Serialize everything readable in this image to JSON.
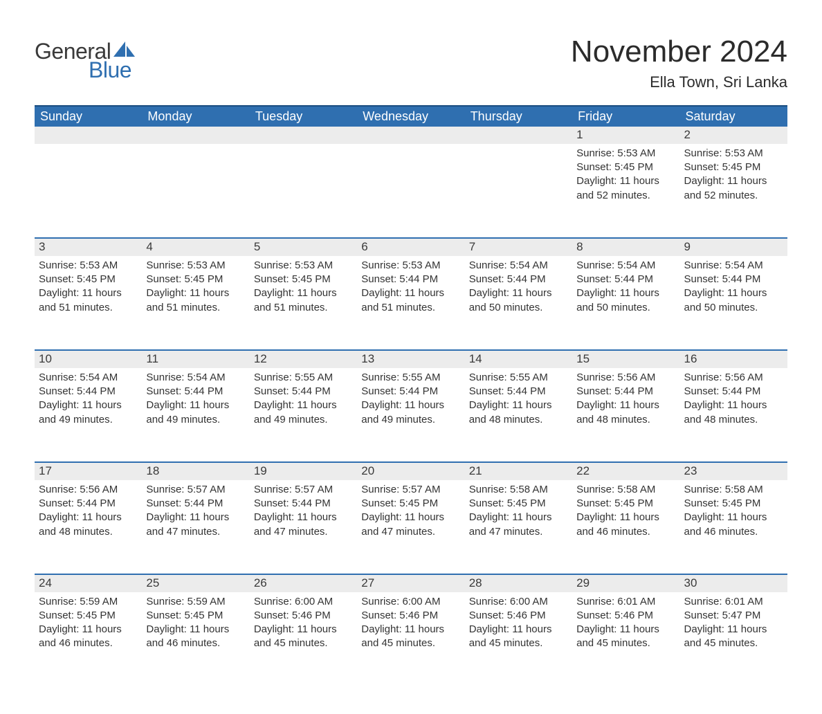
{
  "logo": {
    "word1": "General",
    "word2": "Blue",
    "sail_color": "#2f6fb0",
    "text_general_color": "#3a3a3a",
    "text_blue_color": "#2f6fb0"
  },
  "header": {
    "month_title": "November 2024",
    "location": "Ella Town, Sri Lanka"
  },
  "colors": {
    "header_bg": "#2f6fb0",
    "header_text": "#ffffff",
    "daynum_bg": "#ececec",
    "row_border": "#2f6fb0",
    "body_text": "#333333",
    "daynum_text": "#3a3a3a",
    "page_bg": "#ffffff"
  },
  "typography": {
    "month_title_size": 44,
    "location_size": 22,
    "dayheader_size": 18,
    "cell_size": 15
  },
  "calendar": {
    "day_headers": [
      "Sunday",
      "Monday",
      "Tuesday",
      "Wednesday",
      "Thursday",
      "Friday",
      "Saturday"
    ],
    "weeks": [
      [
        null,
        null,
        null,
        null,
        null,
        {
          "n": "1",
          "sunrise": "5:53 AM",
          "sunset": "5:45 PM",
          "daylight": "11 hours and 52 minutes."
        },
        {
          "n": "2",
          "sunrise": "5:53 AM",
          "sunset": "5:45 PM",
          "daylight": "11 hours and 52 minutes."
        }
      ],
      [
        {
          "n": "3",
          "sunrise": "5:53 AM",
          "sunset": "5:45 PM",
          "daylight": "11 hours and 51 minutes."
        },
        {
          "n": "4",
          "sunrise": "5:53 AM",
          "sunset": "5:45 PM",
          "daylight": "11 hours and 51 minutes."
        },
        {
          "n": "5",
          "sunrise": "5:53 AM",
          "sunset": "5:45 PM",
          "daylight": "11 hours and 51 minutes."
        },
        {
          "n": "6",
          "sunrise": "5:53 AM",
          "sunset": "5:44 PM",
          "daylight": "11 hours and 51 minutes."
        },
        {
          "n": "7",
          "sunrise": "5:54 AM",
          "sunset": "5:44 PM",
          "daylight": "11 hours and 50 minutes."
        },
        {
          "n": "8",
          "sunrise": "5:54 AM",
          "sunset": "5:44 PM",
          "daylight": "11 hours and 50 minutes."
        },
        {
          "n": "9",
          "sunrise": "5:54 AM",
          "sunset": "5:44 PM",
          "daylight": "11 hours and 50 minutes."
        }
      ],
      [
        {
          "n": "10",
          "sunrise": "5:54 AM",
          "sunset": "5:44 PM",
          "daylight": "11 hours and 49 minutes."
        },
        {
          "n": "11",
          "sunrise": "5:54 AM",
          "sunset": "5:44 PM",
          "daylight": "11 hours and 49 minutes."
        },
        {
          "n": "12",
          "sunrise": "5:55 AM",
          "sunset": "5:44 PM",
          "daylight": "11 hours and 49 minutes."
        },
        {
          "n": "13",
          "sunrise": "5:55 AM",
          "sunset": "5:44 PM",
          "daylight": "11 hours and 49 minutes."
        },
        {
          "n": "14",
          "sunrise": "5:55 AM",
          "sunset": "5:44 PM",
          "daylight": "11 hours and 48 minutes."
        },
        {
          "n": "15",
          "sunrise": "5:56 AM",
          "sunset": "5:44 PM",
          "daylight": "11 hours and 48 minutes."
        },
        {
          "n": "16",
          "sunrise": "5:56 AM",
          "sunset": "5:44 PM",
          "daylight": "11 hours and 48 minutes."
        }
      ],
      [
        {
          "n": "17",
          "sunrise": "5:56 AM",
          "sunset": "5:44 PM",
          "daylight": "11 hours and 48 minutes."
        },
        {
          "n": "18",
          "sunrise": "5:57 AM",
          "sunset": "5:44 PM",
          "daylight": "11 hours and 47 minutes."
        },
        {
          "n": "19",
          "sunrise": "5:57 AM",
          "sunset": "5:44 PM",
          "daylight": "11 hours and 47 minutes."
        },
        {
          "n": "20",
          "sunrise": "5:57 AM",
          "sunset": "5:45 PM",
          "daylight": "11 hours and 47 minutes."
        },
        {
          "n": "21",
          "sunrise": "5:58 AM",
          "sunset": "5:45 PM",
          "daylight": "11 hours and 47 minutes."
        },
        {
          "n": "22",
          "sunrise": "5:58 AM",
          "sunset": "5:45 PM",
          "daylight": "11 hours and 46 minutes."
        },
        {
          "n": "23",
          "sunrise": "5:58 AM",
          "sunset": "5:45 PM",
          "daylight": "11 hours and 46 minutes."
        }
      ],
      [
        {
          "n": "24",
          "sunrise": "5:59 AM",
          "sunset": "5:45 PM",
          "daylight": "11 hours and 46 minutes."
        },
        {
          "n": "25",
          "sunrise": "5:59 AM",
          "sunset": "5:45 PM",
          "daylight": "11 hours and 46 minutes."
        },
        {
          "n": "26",
          "sunrise": "6:00 AM",
          "sunset": "5:46 PM",
          "daylight": "11 hours and 45 minutes."
        },
        {
          "n": "27",
          "sunrise": "6:00 AM",
          "sunset": "5:46 PM",
          "daylight": "11 hours and 45 minutes."
        },
        {
          "n": "28",
          "sunrise": "6:00 AM",
          "sunset": "5:46 PM",
          "daylight": "11 hours and 45 minutes."
        },
        {
          "n": "29",
          "sunrise": "6:01 AM",
          "sunset": "5:46 PM",
          "daylight": "11 hours and 45 minutes."
        },
        {
          "n": "30",
          "sunrise": "6:01 AM",
          "sunset": "5:47 PM",
          "daylight": "11 hours and 45 minutes."
        }
      ]
    ]
  },
  "labels": {
    "sunrise_prefix": "Sunrise: ",
    "sunset_prefix": "Sunset: ",
    "daylight_prefix": "Daylight: "
  }
}
